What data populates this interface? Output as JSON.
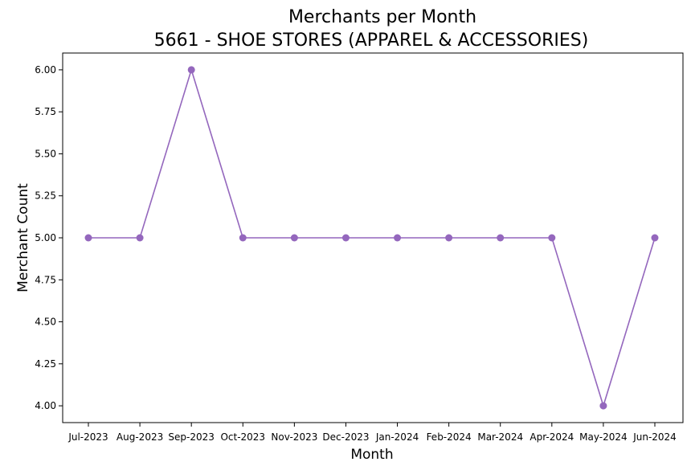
{
  "chart_data": {
    "type": "line",
    "title": "Merchants per Month",
    "subtitle": "5661 - SHOE STORES (APPAREL & ACCESSORIES)",
    "xlabel": "Month",
    "ylabel": "Merchant Count",
    "categories": [
      "Jul-2023",
      "Aug-2023",
      "Sep-2023",
      "Oct-2023",
      "Nov-2023",
      "Dec-2023",
      "Jan-2024",
      "Feb-2024",
      "Mar-2024",
      "Apr-2024",
      "May-2024",
      "Jun-2024"
    ],
    "series": [
      {
        "values": [
          5,
          5,
          6,
          5,
          5,
          5,
          5,
          5,
          5,
          5,
          4,
          5
        ],
        "color": "#9467bd",
        "marker": "circle"
      }
    ],
    "yticks": [
      "4.00",
      "4.25",
      "4.50",
      "4.75",
      "5.00",
      "5.25",
      "5.50",
      "5.75",
      "6.00"
    ],
    "ylim": [
      3.9,
      6.1
    ],
    "grid": false,
    "legend": "none"
  }
}
